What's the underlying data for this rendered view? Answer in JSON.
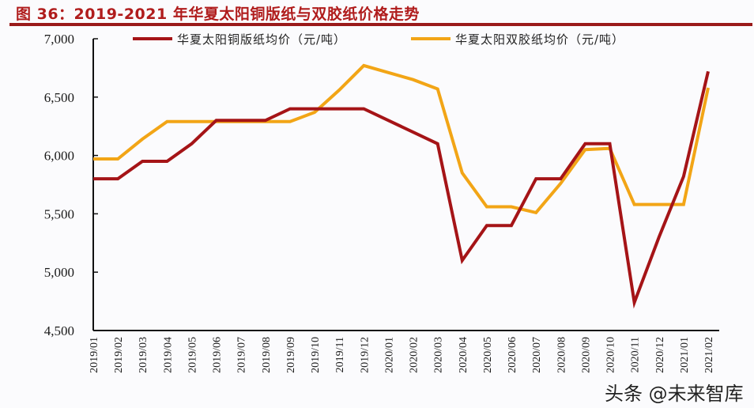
{
  "header": {
    "title": "图 36：2019-2021 年华夏太阳铜版纸与双胶纸价格走势"
  },
  "watermark": "头条 @未来智库",
  "colors": {
    "title": "#b01c1c",
    "series_copperplate": "#a51417",
    "series_offset": "#f2a516",
    "axis": "#111111"
  },
  "chart_data": {
    "type": "line",
    "title": "2019-2021 年华夏太阳铜版纸与双胶纸价格走势",
    "xlabel": "",
    "ylabel": "",
    "ylim": [
      4500,
      7000
    ],
    "yticks": [
      "7,000",
      "6,500",
      "6,000",
      "5,500",
      "5,000",
      "4,500"
    ],
    "ytick_values": [
      7000,
      6500,
      6000,
      5500,
      5000,
      4500
    ],
    "grid": false,
    "legend_position": "top",
    "categories": [
      "2019/01",
      "2019/02",
      "2019/03",
      "2019/04",
      "2019/05",
      "2019/06",
      "2019/07",
      "2019/08",
      "2019/09",
      "2019/10",
      "2019/11",
      "2019/12",
      "2020/01",
      "2020/02",
      "2020/03",
      "2020/04",
      "2020/05",
      "2020/06",
      "2020/07",
      "2020/08",
      "2020/09",
      "2020/10",
      "2020/11",
      "2020/12",
      "2021/01",
      "2021/02"
    ],
    "series": [
      {
        "name": "华夏太阳铜版纸均价（元/吨）",
        "color": "#a51417",
        "values": [
          5800,
          5800,
          5950,
          5950,
          6100,
          6300,
          6300,
          6300,
          6400,
          6400,
          6400,
          6400,
          6300,
          6200,
          6100,
          5100,
          5400,
          5400,
          5800,
          5800,
          6100,
          6100,
          4740,
          5300,
          5820,
          6720
        ]
      },
      {
        "name": "华夏太阳双胶纸均价（元/吨）",
        "color": "#f2a516",
        "values": [
          5970,
          5970,
          6140,
          6290,
          6290,
          6290,
          6290,
          6290,
          6290,
          6370,
          6560,
          6770,
          6710,
          6650,
          6570,
          5850,
          5560,
          5560,
          5510,
          5760,
          6050,
          6060,
          5580,
          5580,
          5580,
          6580
        ]
      }
    ]
  }
}
